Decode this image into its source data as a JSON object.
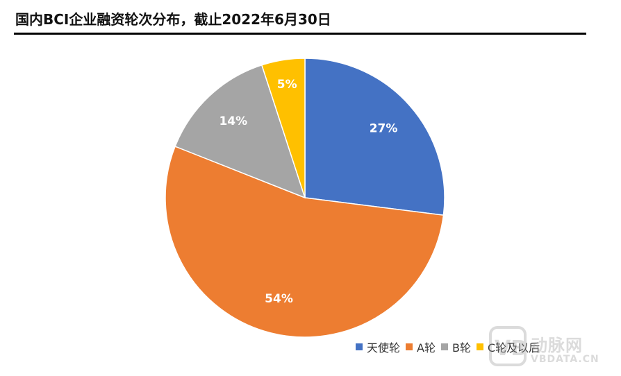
{
  "title": "国内BCI企业融资轮次分布，截止2022年6月30日",
  "chart_data": {
    "type": "pie",
    "title": "",
    "start_angle_deg": 0,
    "direction": "clockwise",
    "slices": [
      {
        "label": "天使轮",
        "value": 27,
        "display": "27%",
        "color": "#4472C4"
      },
      {
        "label": "A轮",
        "value": 54,
        "display": "54%",
        "color": "#ED7D31"
      },
      {
        "label": "B轮",
        "value": 14,
        "display": "14%",
        "color": "#A5A5A5"
      },
      {
        "label": "C轮及以后",
        "value": 5,
        "display": "5%",
        "color": "#FFC000"
      }
    ],
    "legend_position": "bottom-right"
  },
  "watermark": {
    "logo_text": "动脉网",
    "url": "VBDATA.CN"
  }
}
